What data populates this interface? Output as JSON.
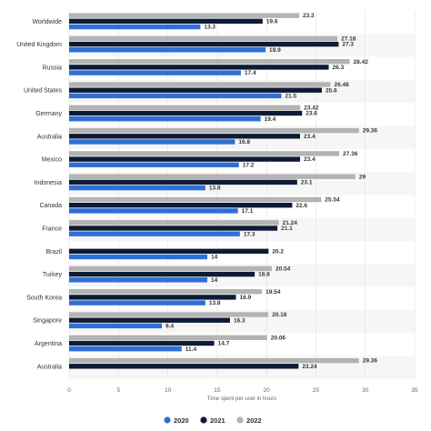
{
  "chart_data": {
    "type": "bar",
    "orientation": "horizontal",
    "categories": [
      "Worldwide",
      "United Kingdom",
      "Russia",
      "United States",
      "Germany",
      "Australia",
      "Mexico",
      "Indonesia",
      "Canada",
      "France",
      "Brazil",
      "Turkey",
      "South Korea",
      "Singapore",
      "Argentina",
      "Australia"
    ],
    "series": [
      {
        "name": "2020",
        "color": "#2f6fd6",
        "values": [
          13.3,
          19.9,
          17.4,
          21.5,
          19.4,
          16.8,
          17.2,
          13.8,
          17.1,
          17.3,
          14,
          14,
          13.8,
          9.4,
          11.4,
          null
        ]
      },
      {
        "name": "2021",
        "color": "#0e1b35",
        "values": [
          19.6,
          27.3,
          26.3,
          25.6,
          23.6,
          23.4,
          23.4,
          23.1,
          22.6,
          21.1,
          20.2,
          18.8,
          16.9,
          16.3,
          14.7,
          23.24
        ]
      },
      {
        "name": "2022",
        "color": "#b3b3b3",
        "values": [
          23.3,
          27.18,
          28.42,
          26.48,
          23.42,
          29.36,
          27.36,
          29,
          25.54,
          21.24,
          null,
          20.54,
          19.54,
          20.18,
          20.06,
          29.36
        ]
      }
    ],
    "value_labels": [
      [
        "13.3",
        "19.6",
        "23.3"
      ],
      [
        "19.9",
        "27.3",
        "27.18"
      ],
      [
        "17.4",
        "26.3",
        "28.42"
      ],
      [
        "21.5",
        "25.6",
        "26.48"
      ],
      [
        "19.4",
        "23.6",
        "23.42"
      ],
      [
        "16.8",
        "23.4",
        "29.36"
      ],
      [
        "17.2",
        "23.4",
        "27.36"
      ],
      [
        "13.8",
        "23.1",
        "29"
      ],
      [
        "17.1",
        "22.6",
        "25.54"
      ],
      [
        "17.3",
        "21.1",
        "21.24"
      ],
      [
        "14",
        "20.2",
        ""
      ],
      [
        "14",
        "18.8",
        "20.54"
      ],
      [
        "13.8",
        "16.9",
        "19.54"
      ],
      [
        "9.4",
        "16.3",
        "20.18"
      ],
      [
        "11.4",
        "14.7",
        "20.06"
      ],
      [
        "",
        "23.24",
        "29.36"
      ]
    ],
    "xlabel": "Time spent per user in hours",
    "xlim": [
      0,
      35
    ],
    "xticks": [
      0,
      5,
      10,
      15,
      20,
      25,
      30,
      35
    ],
    "grid": true,
    "legend": "bottom-center"
  }
}
